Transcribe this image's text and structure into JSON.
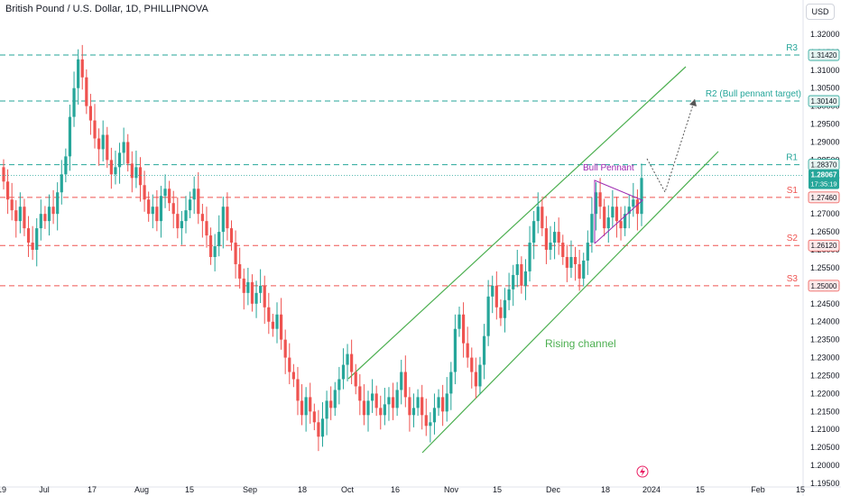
{
  "header": {
    "title": "British Pound / U.S. Dollar, 1D, PHILLIPNOVA",
    "currency_button": "USD"
  },
  "colors": {
    "up": "#26a69a",
    "down": "#ef5350",
    "resistance": "#26a69a",
    "support": "#ef5350",
    "channel": "#4caf50",
    "pennant": "#9c27b0",
    "price_tag": "#26a69a"
  },
  "chart_data": {
    "type": "candlestick",
    "title": "British Pound / U.S. Dollar, 1D, PHILLIPNOVA",
    "y_ticks": [
      "1.32000",
      "1.31500",
      "1.31000",
      "1.30500",
      "1.30000",
      "1.29500",
      "1.29000",
      "1.28500",
      "1.28000",
      "1.27500",
      "1.27000",
      "1.26500",
      "1.26000",
      "1.25500",
      "1.25000",
      "1.24500",
      "1.24000",
      "1.23500",
      "1.23000",
      "1.22500",
      "1.22000",
      "1.21500",
      "1.21000",
      "1.20500",
      "1.20000",
      "1.19500"
    ],
    "ylim": [
      1.194,
      1.3235
    ],
    "x_ticks": [
      "19",
      "Jul",
      "17",
      "Aug",
      "15",
      "Sep",
      "18",
      "Oct",
      "16",
      "Nov",
      "15",
      "Dec",
      "18",
      "2024",
      "15",
      "Feb",
      "15"
    ],
    "levels": [
      {
        "name": "R3",
        "label": "R3",
        "value": 1.3142,
        "price_label": "1.31420",
        "kind": "resistance"
      },
      {
        "name": "R2",
        "label": "R2 (Bull pennant target)",
        "value": 1.3014,
        "price_label": "1.30140",
        "kind": "resistance"
      },
      {
        "name": "R1",
        "label": "R1",
        "value": 1.2837,
        "price_label": "1.28370",
        "kind": "resistance"
      },
      {
        "name": "S1",
        "label": "S1",
        "value": 1.2746,
        "price_label": "1.27460",
        "kind": "support"
      },
      {
        "name": "S2",
        "label": "S2",
        "value": 1.2612,
        "price_label": "1.26120",
        "kind": "support"
      },
      {
        "name": "S3",
        "label": "S3",
        "value": 1.25,
        "price_label": "1.25000",
        "kind": "support"
      }
    ],
    "last_price": {
      "value": 1.28067,
      "label": "1.28067",
      "countdown": "17:35:19"
    },
    "annotations": {
      "bull_pennant": "Bull Pennant",
      "rising_channel": "Rising channel"
    },
    "close_series": [
      1.279,
      1.274,
      1.271,
      1.268,
      1.272,
      1.266,
      1.262,
      1.26,
      1.266,
      1.27,
      1.268,
      1.272,
      1.27,
      1.276,
      1.281,
      1.286,
      1.297,
      1.305,
      1.313,
      1.308,
      1.3,
      1.296,
      1.291,
      1.288,
      1.292,
      1.285,
      1.281,
      1.283,
      1.287,
      1.29,
      1.284,
      1.28,
      1.283,
      1.278,
      1.274,
      1.27,
      1.272,
      1.268,
      1.275,
      1.277,
      1.273,
      1.27,
      1.266,
      1.268,
      1.271,
      1.274,
      1.277,
      1.27,
      1.268,
      1.264,
      1.258,
      1.261,
      1.265,
      1.272,
      1.266,
      1.262,
      1.256,
      1.252,
      1.248,
      1.251,
      1.245,
      1.248,
      1.25,
      1.244,
      1.24,
      1.238,
      1.242,
      1.235,
      1.23,
      1.226,
      1.224,
      1.218,
      1.214,
      1.219,
      1.215,
      1.212,
      1.208,
      1.213,
      1.218,
      1.216,
      1.221,
      1.224,
      1.228,
      1.231,
      1.226,
      1.222,
      1.218,
      1.214,
      1.218,
      1.22,
      1.216,
      1.214,
      1.217,
      1.219,
      1.216,
      1.221,
      1.226,
      1.219,
      1.214,
      1.216,
      1.219,
      1.214,
      1.211,
      1.212,
      1.216,
      1.219,
      1.215,
      1.22,
      1.226,
      1.238,
      1.242,
      1.234,
      1.23,
      1.226,
      1.222,
      1.228,
      1.236,
      1.247,
      1.25,
      1.244,
      1.241,
      1.246,
      1.249,
      1.253,
      1.256,
      1.25,
      1.254,
      1.262,
      1.268,
      1.272,
      1.266,
      1.26,
      1.262,
      1.265,
      1.262,
      1.258,
      1.255,
      1.258,
      1.256,
      1.252,
      1.257,
      1.262,
      1.27,
      1.276,
      1.272,
      1.266,
      1.269,
      1.272,
      1.268,
      1.266,
      1.27,
      1.272,
      1.274,
      1.27,
      1.28
    ]
  }
}
